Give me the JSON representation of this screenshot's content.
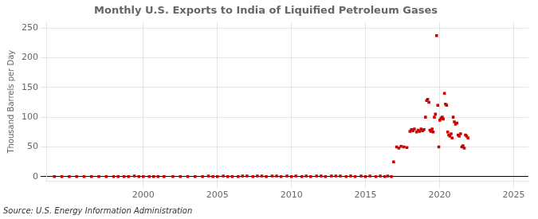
{
  "chart_data": {
    "type": "scatter",
    "title": "Monthly U.S. Exports to India of Liquified Petroleum Gases",
    "ylabel": "Thousand Barrels per Day",
    "annotations": [
      "Source: U.S. Energy Information Administration"
    ],
    "xlim": [
      1993.5,
      2026
    ],
    "ylim": [
      -8,
      260
    ],
    "xticks": [
      2000,
      2005,
      2010,
      2015,
      2020,
      2025
    ],
    "yticks": [
      0,
      50,
      100,
      150,
      200,
      250
    ],
    "grid": true,
    "color": "#cc0000",
    "marker": "square",
    "x": [
      1994.0,
      1994.5,
      1995.0,
      1995.5,
      1996.0,
      1996.5,
      1997.0,
      1997.5,
      1998.0,
      1998.3,
      1998.7,
      1999.0,
      1999.4,
      1999.7,
      2000.0,
      2000.4,
      2000.7,
      2001.0,
      2001.4,
      2002.0,
      2002.5,
      2003.0,
      2003.5,
      2004.0,
      2004.4,
      2004.7,
      2005.0,
      2005.4,
      2005.7,
      2006.0,
      2006.4,
      2006.7,
      2007.0,
      2007.4,
      2007.7,
      2008.0,
      2008.3,
      2008.7,
      2009.0,
      2009.3,
      2009.7,
      2010.0,
      2010.3,
      2010.7,
      2011.0,
      2011.3,
      2011.7,
      2012.0,
      2012.3,
      2012.7,
      2013.0,
      2013.3,
      2013.7,
      2014.0,
      2014.3,
      2014.7,
      2015.0,
      2015.3,
      2015.7,
      2016.0,
      2016.3,
      2016.5,
      2016.75,
      2016.9,
      2017.1,
      2017.25,
      2017.4,
      2017.6,
      2017.8,
      2018.0,
      2018.1,
      2018.2,
      2018.3,
      2018.45,
      2018.55,
      2018.65,
      2018.75,
      2018.85,
      2018.95,
      2019.05,
      2019.13,
      2019.2,
      2019.28,
      2019.35,
      2019.42,
      2019.5,
      2019.57,
      2019.65,
      2019.72,
      2019.8,
      2019.88,
      2019.95,
      2020.02,
      2020.1,
      2020.18,
      2020.25,
      2020.33,
      2020.4,
      2020.48,
      2020.55,
      2020.62,
      2020.7,
      2020.78,
      2020.85,
      2020.92,
      2021.0,
      2021.08,
      2021.17,
      2021.25,
      2021.33,
      2021.42,
      2021.5,
      2021.58,
      2021.67,
      2021.75,
      2021.83,
      2021.92
    ],
    "values": [
      0,
      0,
      0,
      0,
      0,
      0,
      0,
      0,
      0,
      0,
      0,
      0,
      1,
      0,
      0,
      0,
      0,
      0,
      0,
      0,
      0,
      0,
      0,
      0,
      1,
      0,
      0,
      1,
      0,
      0,
      0,
      1,
      1,
      0,
      1,
      1,
      0,
      1,
      1,
      0,
      1,
      0,
      1,
      0,
      1,
      0,
      1,
      1,
      0,
      1,
      1,
      1,
      0,
      1,
      0,
      1,
      0,
      1,
      0,
      1,
      0,
      1,
      0,
      25,
      50,
      48,
      51,
      50,
      49,
      76,
      79,
      77,
      80,
      75,
      78,
      76,
      80,
      77,
      79,
      100,
      128,
      130,
      125,
      78,
      76,
      80,
      75,
      100,
      105,
      237,
      120,
      50,
      95,
      98,
      100,
      97,
      140,
      122,
      120,
      75,
      70,
      68,
      72,
      65,
      100,
      92,
      88,
      90,
      70,
      68,
      72,
      50,
      52,
      48,
      70,
      68,
      65
    ]
  }
}
